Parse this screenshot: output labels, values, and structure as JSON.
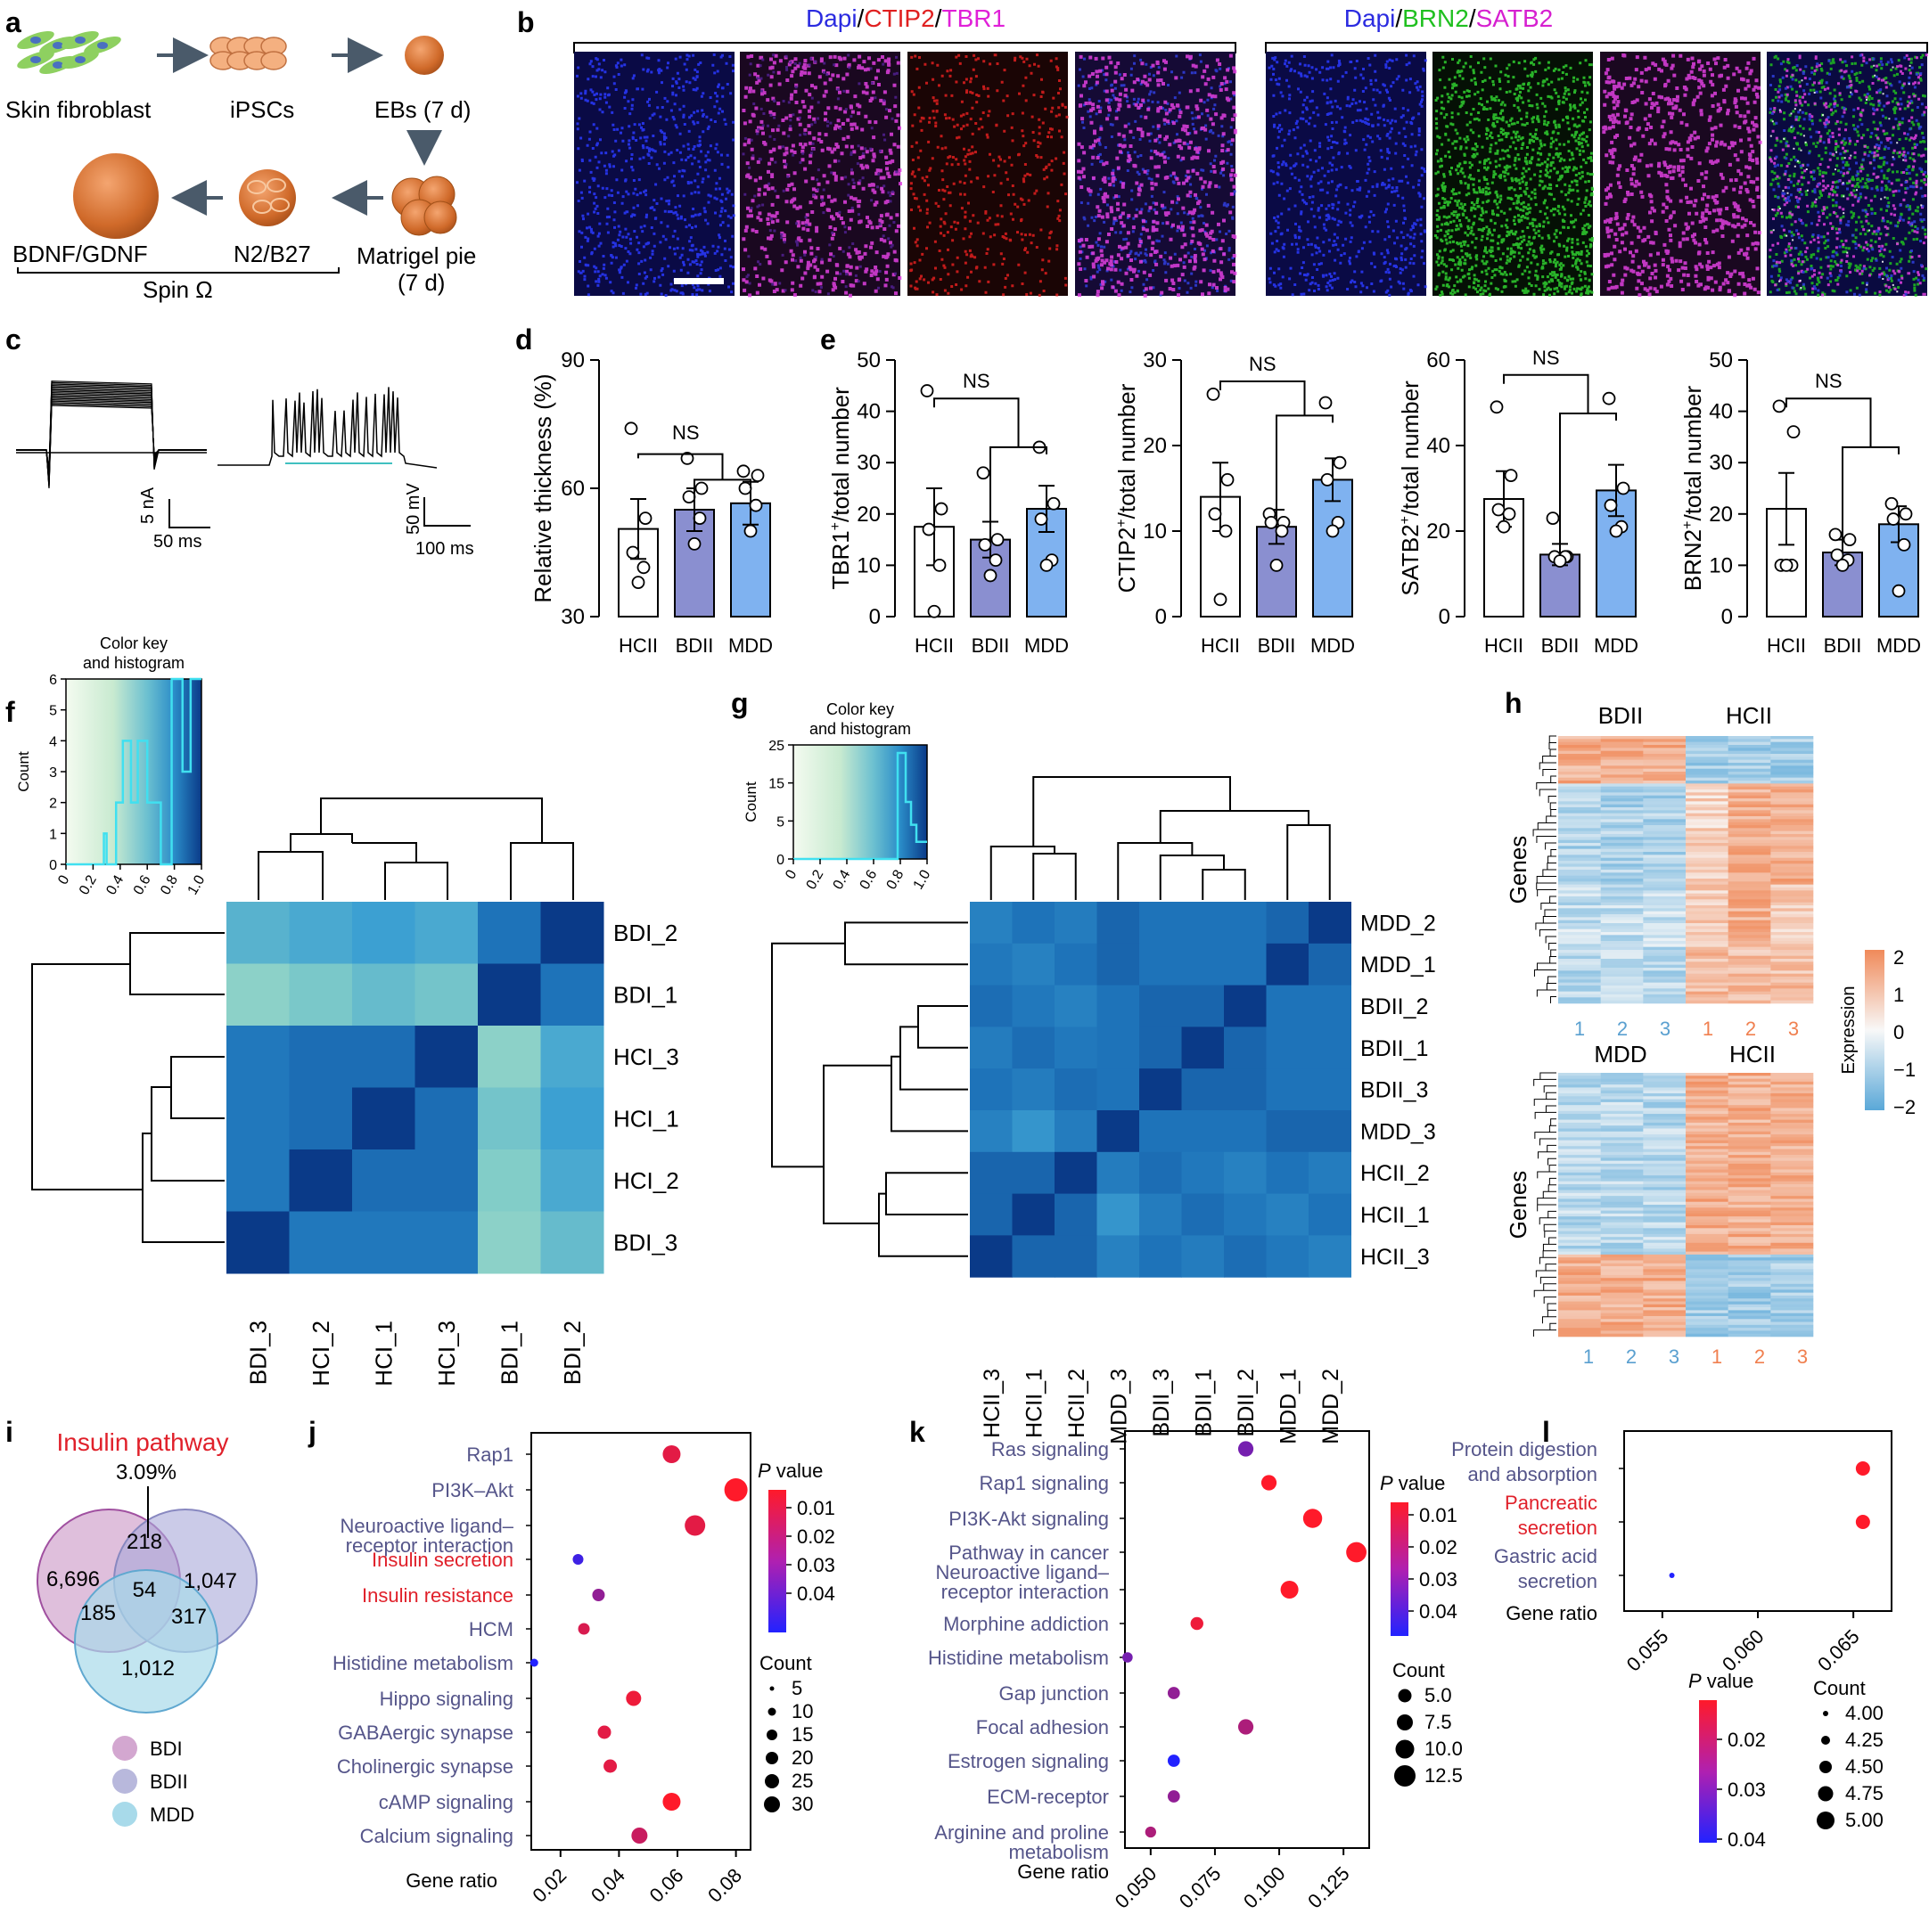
{
  "panel_letters": {
    "a": "a",
    "b": "b",
    "c": "c",
    "d": "d",
    "e": "e",
    "f": "f",
    "g": "g",
    "h": "h",
    "i": "i",
    "j": "j",
    "k": "k",
    "l": "l"
  },
  "colors": {
    "dapi": "#2b2be0",
    "ctip2": "#e02020",
    "tbr1": "#e020d8",
    "brn2": "#20c020",
    "satb2": "#d620d0",
    "bdi": "#d3a7d0",
    "bdii": "#b8b8dc",
    "mdd": "#a8daea",
    "hc_bar": "#ffffff",
    "bd_bar": "#8a8fd0",
    "mdd_bar": "#7fb2f0",
    "red_label": "#e0202a",
    "path_label": "#4a4a8a"
  },
  "panel_a": {
    "skin_fibroblast": "Skin fibroblast",
    "ipscs": "iPSCs",
    "ebs": "EBs (7 d)",
    "bdnf": "BDNF/GDNF",
    "n2b27": "N2/B27",
    "matrigel": "Matrigel pie",
    "matrigel_days": "(7 d)",
    "spin": "Spin Ω"
  },
  "panel_b": {
    "left_title": [
      {
        "text": "Dapi",
        "color": "#2b2be0"
      },
      {
        "text": "/",
        "color": "#000"
      },
      {
        "text": "CTIP2",
        "color": "#e02020"
      },
      {
        "text": "/",
        "color": "#000"
      },
      {
        "text": "TBR1",
        "color": "#e020d8"
      }
    ],
    "right_title": [
      {
        "text": "Dapi",
        "color": "#2b2be0"
      },
      {
        "text": "/",
        "color": "#000"
      },
      {
        "text": "BRN2",
        "color": "#20c020"
      },
      {
        "text": "/",
        "color": "#000"
      },
      {
        "text": "SATB2",
        "color": "#d620d0"
      }
    ]
  },
  "panel_c": {
    "scale1_y": "5 nA",
    "scale1_x": "50 ms",
    "scale2_y": "50 mV",
    "scale2_x": "100 ms"
  },
  "panel_de": {
    "ns": "NS",
    "charts": [
      {
        "type": "bar",
        "ylabel": "Relative thickness (%)",
        "sup": "",
        "ylim": [
          30,
          90
        ],
        "ticks": [
          30,
          60,
          90
        ],
        "categories": [
          "HCII",
          "BDII",
          "MDD"
        ],
        "values": [
          50.5,
          55,
          56.5
        ],
        "errors": [
          7,
          5,
          5
        ],
        "points": [
          [
            74,
            53,
            45,
            41.5,
            38
          ],
          [
            67,
            60,
            58,
            53,
            47
          ],
          [
            64,
            63,
            60,
            56,
            50
          ]
        ]
      },
      {
        "type": "bar",
        "ylabel": "TBR1",
        "sup": "+",
        "ylabel_rest": "/total number",
        "ylim": [
          0,
          50
        ],
        "ticks": [
          0,
          10,
          20,
          30,
          40,
          50
        ],
        "categories": [
          "HCII",
          "BDII",
          "MDD"
        ],
        "values": [
          17.5,
          15,
          21
        ],
        "errors": [
          7.5,
          3.5,
          4.5
        ],
        "points": [
          [
            44,
            21,
            17,
            10,
            1
          ],
          [
            28,
            15,
            14,
            11,
            8
          ],
          [
            33,
            22,
            19,
            11,
            10
          ]
        ]
      },
      {
        "type": "bar",
        "ylabel": "CTIP2",
        "sup": "+",
        "ylabel_rest": "/total number",
        "ylim": [
          0,
          30
        ],
        "ticks": [
          0,
          10,
          20,
          30
        ],
        "categories": [
          "HCII",
          "BDII",
          "MDD"
        ],
        "values": [
          14,
          10.5,
          16
        ],
        "errors": [
          4,
          2,
          2.5
        ],
        "points": [
          [
            26,
            16,
            12,
            10,
            2
          ],
          [
            12,
            11,
            11,
            10,
            6
          ],
          [
            25,
            18,
            16,
            11,
            10
          ]
        ]
      },
      {
        "type": "bar",
        "ylabel": "SATB2",
        "sup": "+",
        "ylabel_rest": "/total number",
        "ylim": [
          0,
          60
        ],
        "ticks": [
          0,
          20,
          40,
          60
        ],
        "categories": [
          "HCII",
          "BDII",
          "MDD"
        ],
        "values": [
          27.5,
          14.5,
          29.5
        ],
        "errors": [
          6.5,
          2.5,
          6
        ],
        "points": [
          [
            49,
            33,
            25,
            24,
            21
          ],
          [
            23,
            14,
            14,
            14,
            13
          ],
          [
            51,
            30,
            26,
            21,
            20
          ]
        ]
      },
      {
        "type": "bar",
        "ylabel": "BRN2",
        "sup": "+",
        "ylabel_rest": "/total number",
        "ylim": [
          0,
          50
        ],
        "ticks": [
          0,
          10,
          20,
          30,
          40,
          50
        ],
        "categories": [
          "HCII",
          "BDII",
          "MDD"
        ],
        "values": [
          21,
          12.5,
          18
        ],
        "errors": [
          7,
          2.5,
          3.5
        ],
        "points": [
          [
            41,
            36,
            10,
            10,
            10
          ],
          [
            16,
            15,
            12,
            11,
            10
          ],
          [
            22,
            20,
            19,
            14,
            5
          ]
        ]
      }
    ]
  },
  "panel_f": {
    "key_title1": "Color key",
    "key_title2": "and histogram",
    "count_label": "Count",
    "yticks": [
      "0",
      "1",
      "2",
      "3",
      "4",
      "5",
      "6"
    ],
    "xticks": [
      "0",
      "0.2",
      "0.4",
      "0.6",
      "0.8",
      "1.0"
    ],
    "rows": [
      "BDI_2",
      "BDI_1",
      "HCI_3",
      "HCI_1",
      "HCI_2",
      "BDI_3"
    ],
    "cols": [
      "BDI_3",
      "HCI_2",
      "HCI_1",
      "HCI_3",
      "BDI_1",
      "BDI_2"
    ]
  },
  "panel_g": {
    "key_title1": "Color key",
    "key_title2": "and histogram",
    "count_label": "Count",
    "yticks": [
      "0",
      "5",
      "15",
      "25"
    ],
    "xticks": [
      "0",
      "0.2",
      "0.4",
      "0.6",
      "0.8",
      "1.0"
    ],
    "rows": [
      "MDD_2",
      "MDD_1",
      "BDII_2",
      "BDII_1",
      "BDII_3",
      "MDD_3",
      "HCII_2",
      "HCII_1",
      "HCII_3"
    ],
    "cols": [
      "HCII_3",
      "HCII_1",
      "HCII_2",
      "MDD_3",
      "BDII_3",
      "BDII_1",
      "BDII_2",
      "MDD_1",
      "MDD_2"
    ]
  },
  "panel_h": {
    "top_g1": "BDII",
    "top_g2": "HCII",
    "bot_g1": "MDD",
    "bot_g2": "HCII",
    "genes": "Genes",
    "nums": [
      "1",
      "2",
      "3",
      "1",
      "2",
      "3"
    ],
    "expression": "Expression",
    "scale": [
      "2",
      "1",
      "0",
      "−1",
      "−2"
    ]
  },
  "panel_i": {
    "title": "Insulin pathway",
    "pct": "3.09%",
    "n_bdi": "6,696",
    "n_bdii": "1,047",
    "n_mdd": "1,012",
    "n_bdi_bdii": "218",
    "n_all": "54",
    "n_bdi_mdd": "185",
    "n_bdii_mdd": "317",
    "legend": [
      "BDI",
      "BDII",
      "MDD"
    ]
  },
  "panel_j": {
    "type": "scatter",
    "xlabel": "Gene ratio",
    "xlim": [
      0.01,
      0.085
    ],
    "xticks": [
      "0.02",
      "0.04",
      "0.06",
      "0.08"
    ],
    "xtick_vals": [
      0.02,
      0.04,
      0.06,
      0.08
    ],
    "pvalue_title": "P",
    "pvalue_rest": " value",
    "pticks": [
      "0.01",
      "0.02",
      "0.03",
      "0.04"
    ],
    "count_title": "Count",
    "count_ticks": [
      "5",
      "10",
      "15",
      "20",
      "25",
      "30"
    ],
    "terms": [
      {
        "label": "Rap1",
        "ratio": 0.058,
        "p": 0.01,
        "count": 14,
        "red": false,
        "lines": 1
      },
      {
        "label": "PI3K–Akt",
        "ratio": 0.08,
        "p": 0.005,
        "count": 20,
        "red": false,
        "lines": 1
      },
      {
        "label": "Neuroactive ligand–",
        "label2": "receptor interaction",
        "ratio": 0.066,
        "p": 0.01,
        "count": 17,
        "red": false,
        "lines": 2
      },
      {
        "label": "Insulin secretion",
        "ratio": 0.026,
        "p": 0.04,
        "count": 6,
        "red": true,
        "lines": 1
      },
      {
        "label": "Insulin resistance",
        "ratio": 0.033,
        "p": 0.025,
        "count": 8,
        "red": true,
        "lines": 1
      },
      {
        "label": "HCM",
        "ratio": 0.028,
        "p": 0.012,
        "count": 7,
        "red": false,
        "lines": 1
      },
      {
        "label": "Histidine metabolism",
        "ratio": 0.011,
        "p": 0.045,
        "count": 3,
        "red": false,
        "lines": 1
      },
      {
        "label": "Hippo signaling",
        "ratio": 0.045,
        "p": 0.008,
        "count": 11,
        "red": false,
        "lines": 1
      },
      {
        "label": "GABAergic synapse",
        "ratio": 0.035,
        "p": 0.01,
        "count": 9,
        "red": false,
        "lines": 1
      },
      {
        "label": "Cholinergic synapse",
        "ratio": 0.037,
        "p": 0.01,
        "count": 9,
        "red": false,
        "lines": 1
      },
      {
        "label": "cAMP signaling",
        "ratio": 0.058,
        "p": 0.005,
        "count": 14,
        "red": false,
        "lines": 1
      },
      {
        "label": "Calcium signaling",
        "ratio": 0.047,
        "p": 0.015,
        "count": 12,
        "red": false,
        "lines": 1
      }
    ]
  },
  "panel_k": {
    "type": "scatter",
    "xlabel": "Gene ratio",
    "xlim": [
      0.04,
      0.135
    ],
    "xticks": [
      "0.050",
      "0.075",
      "0.100",
      "0.125"
    ],
    "xtick_vals": [
      0.05,
      0.075,
      0.1,
      0.125
    ],
    "pvalue_title": "P",
    "pvalue_rest": " value",
    "pticks": [
      "0.01",
      "0.02",
      "0.03",
      "0.04"
    ],
    "count_title": "Count",
    "count_ticks": [
      "5.0",
      "7.5",
      "10.0",
      "12.5"
    ],
    "terms": [
      {
        "label": "Ras signaling",
        "ratio": 0.087,
        "p": 0.03,
        "count": 8,
        "red": false,
        "lines": 1
      },
      {
        "label": "Rap1 signaling",
        "ratio": 0.096,
        "p": 0.005,
        "count": 8,
        "red": false,
        "lines": 1
      },
      {
        "label": "PI3K-Akt signaling",
        "ratio": 0.113,
        "p": 0.005,
        "count": 11,
        "red": false,
        "lines": 1
      },
      {
        "label": "Pathway in cancer",
        "label2": "Neuroactive ligand–",
        "label3": "receptor interaction",
        "ratio": 0.13,
        "p": 0.005,
        "count": 12,
        "red": false,
        "lines": 1
      },
      {
        "label": "",
        "ratio": 0.104,
        "p": 0.005,
        "count": 10,
        "red": false,
        "lines": 0
      },
      {
        "label": "Morphine addiction",
        "ratio": 0.068,
        "p": 0.008,
        "count": 6,
        "red": false,
        "lines": 1
      },
      {
        "label": "Histidine metabolism",
        "ratio": 0.041,
        "p": 0.03,
        "count": 4,
        "red": false,
        "lines": 1
      },
      {
        "label": "Gap junction",
        "ratio": 0.059,
        "p": 0.025,
        "count": 5.5,
        "red": false,
        "lines": 1
      },
      {
        "label": "Focal adhesion",
        "ratio": 0.087,
        "p": 0.02,
        "count": 8,
        "red": false,
        "lines": 1
      },
      {
        "label": "Estrogen signaling",
        "ratio": 0.059,
        "p": 0.045,
        "count": 5.5,
        "red": false,
        "lines": 1
      },
      {
        "label": "ECM-receptor",
        "ratio": 0.059,
        "p": 0.025,
        "count": 5.5,
        "red": false,
        "lines": 1
      },
      {
        "label": "Arginine and proline",
        "label2": "metabolism",
        "ratio": 0.05,
        "p": 0.02,
        "count": 4.5,
        "red": false,
        "lines": 2
      }
    ]
  },
  "panel_l": {
    "type": "scatter",
    "xlabel": "Gene ratio",
    "xlim": [
      0.053,
      0.067
    ],
    "xticks": [
      "0.055",
      "0.060",
      "0.065"
    ],
    "xtick_vals": [
      0.055,
      0.06,
      0.065
    ],
    "pvalue_title": "P",
    "pvalue_rest": " value",
    "pticks": [
      "0.02",
      "0.03",
      "0.04"
    ],
    "count_title": "Count",
    "count_ticks": [
      "4.00",
      "4.25",
      "4.50",
      "4.75",
      "5.00"
    ],
    "terms": [
      {
        "label": "Protein digestion",
        "label2": "and absorption",
        "ratio": 0.0655,
        "p": 0.005,
        "count": 5,
        "red": false
      },
      {
        "label": "Pancreatic",
        "label2": "secretion",
        "ratio": 0.0655,
        "p": 0.005,
        "count": 5,
        "red": true
      },
      {
        "label": "Gastric acid",
        "label2": "secretion",
        "ratio": 0.0555,
        "p": 0.045,
        "count": 4,
        "red": false
      }
    ]
  }
}
